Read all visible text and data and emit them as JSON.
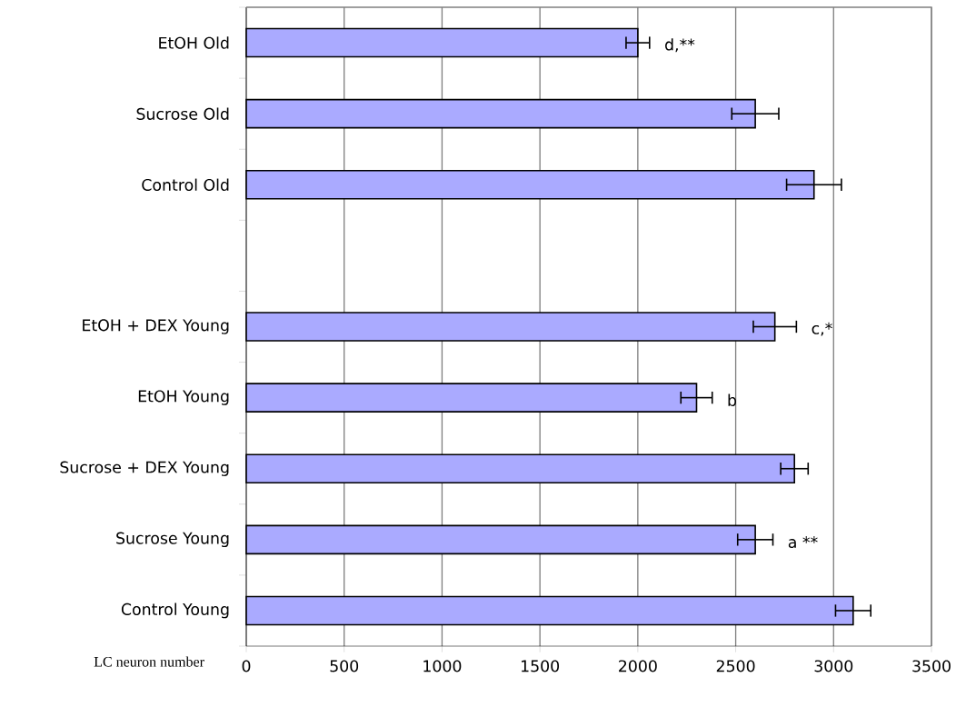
{
  "chart_data": {
    "type": "bar",
    "orientation": "horizontal",
    "xlabel": "LC neuron number",
    "categories": [
      "EtOH Old",
      "Sucrose Old",
      "Control Old",
      null,
      "EtOH + DEX Young",
      "EtOH Young",
      "Sucrose + DEX Young",
      "Sucrose Young",
      "Control Young"
    ],
    "values": [
      2000,
      2600,
      2900,
      null,
      2700,
      2300,
      2800,
      2600,
      3100
    ],
    "errors": [
      60,
      120,
      140,
      null,
      110,
      80,
      70,
      90,
      90
    ],
    "color": "#aaaaff",
    "xlim": [
      0,
      3500
    ],
    "xticks": [
      0,
      500,
      1000,
      1500,
      2000,
      2500,
      3000,
      3500
    ],
    "grid": "x",
    "annotations": [
      {
        "text": "d,**",
        "x": 2000,
        "y": "EtOH Old"
      },
      {
        "text": "c,*",
        "x": 2700,
        "y": "EtOH + DEX Young"
      },
      {
        "text": "b",
        "x": 2300,
        "y": "EtOH Young"
      },
      {
        "text": "a **",
        "x": 2600,
        "y": "Sucrose Young"
      }
    ]
  }
}
